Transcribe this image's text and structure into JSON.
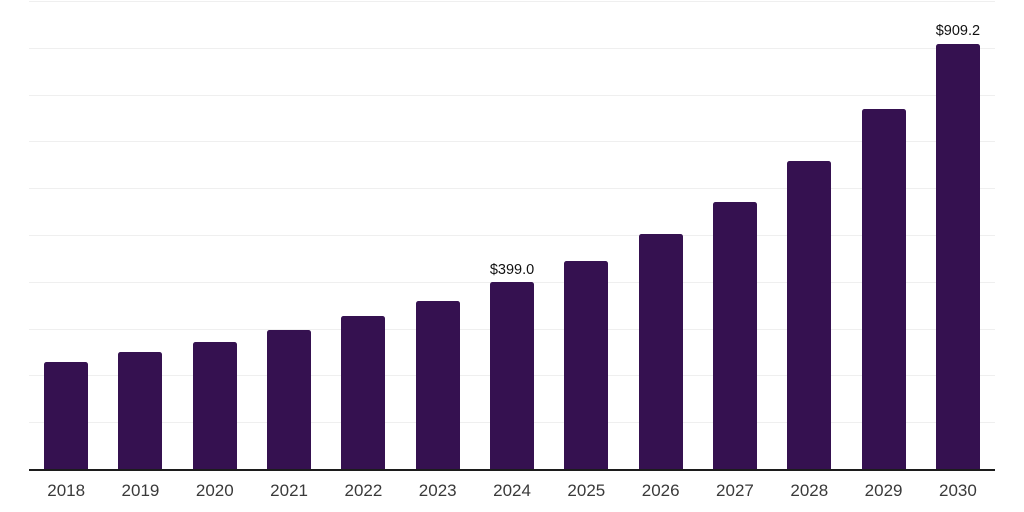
{
  "chart_data": {
    "type": "bar",
    "title": "",
    "xlabel": "",
    "ylabel": "",
    "categories": [
      "2018",
      "2019",
      "2020",
      "2021",
      "2022",
      "2023",
      "2024",
      "2025",
      "2026",
      "2027",
      "2028",
      "2029",
      "2030"
    ],
    "values": [
      228.5,
      249.7,
      271.9,
      297.3,
      326.9,
      359.0,
      399.0,
      444.8,
      502.7,
      571.4,
      658.7,
      770.2,
      909.2
    ],
    "annotations": [
      {
        "category": "2024",
        "text": "$399.0"
      },
      {
        "category": "2030",
        "text": "$909.2"
      }
    ],
    "ylim": [
      0,
      1000
    ],
    "gridline_step": 100,
    "grid": true,
    "legend": "none",
    "y_axis_labels_visible": false,
    "colors": {
      "bar": "#351150",
      "axis_line": "#1c1c1c",
      "gridline": "#efefef",
      "tick_label": "#3a3a3a",
      "annotation_text": "#111111",
      "background": "#ffffff"
    }
  }
}
